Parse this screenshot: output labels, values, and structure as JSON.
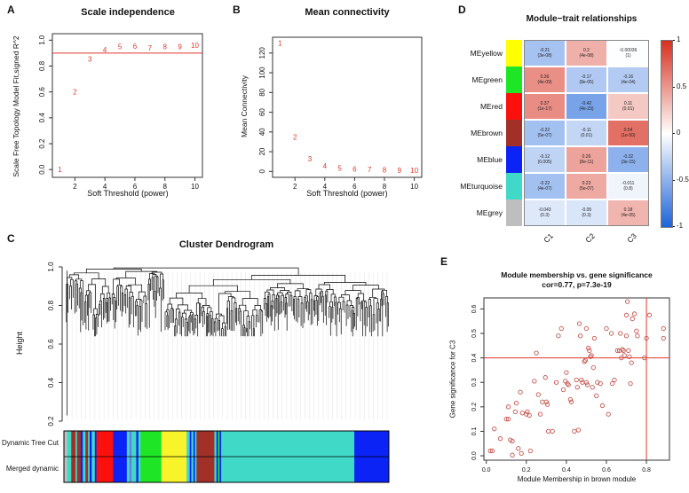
{
  "colors": {
    "accent_red": "#e0372c",
    "scatter_stroke": "#c4564e",
    "heat_positive": "#d7301f",
    "heat_negative": "#1c64d9",
    "axis_box": "#333333",
    "faint_grid": "#e7e7e7"
  },
  "chart_data": [
    {
      "panel_label": "A",
      "type": "scatter",
      "point_style": "text-labels",
      "title": "Scale independence",
      "xlabel": "Soft Threshold (power)",
      "ylabel": "Scale Free Topology Model Fit,signed R^2",
      "xticks": [
        "2",
        "4",
        "6",
        "8",
        "10"
      ],
      "xtick_vals": [
        2,
        4,
        6,
        8,
        10
      ],
      "yticks": [
        "0.0",
        "0.2",
        "0.4",
        "0.6",
        "0.8",
        "1.0"
      ],
      "ytick_vals": [
        0.0,
        0.2,
        0.4,
        0.6,
        0.8,
        1.0
      ],
      "xlim": [
        0.5,
        10.5
      ],
      "ylim": [
        -0.06,
        1.05
      ],
      "hline": 0.9,
      "labels": [
        "1",
        "2",
        "3",
        "4",
        "5",
        "6",
        "7",
        "8",
        "9",
        "10"
      ],
      "x": [
        1,
        2,
        3,
        4,
        5,
        6,
        7,
        8,
        9,
        10
      ],
      "y": [
        0.0,
        0.6,
        0.855,
        0.925,
        0.95,
        0.955,
        0.94,
        0.95,
        0.95,
        0.96
      ]
    },
    {
      "panel_label": "B",
      "type": "scatter",
      "point_style": "text-labels",
      "title": "Mean connectivity",
      "xlabel": "Soft Threshold (power)",
      "ylabel": "Mean Connectivity",
      "xticks": [
        "2",
        "4",
        "6",
        "8",
        "10"
      ],
      "xtick_vals": [
        2,
        4,
        6,
        8,
        10
      ],
      "yticks": [
        "0",
        "20",
        "40",
        "60",
        "80",
        "100",
        "120"
      ],
      "ytick_vals": [
        0,
        20,
        40,
        60,
        80,
        100,
        120
      ],
      "xlim": [
        0.5,
        10.5
      ],
      "ylim": [
        -6,
        136
      ],
      "labels": [
        "1",
        "2",
        "3",
        "4",
        "5",
        "6",
        "7",
        "8",
        "9",
        "10"
      ],
      "x": [
        1,
        2,
        3,
        4,
        5,
        6,
        7,
        8,
        9,
        10
      ],
      "y": [
        130,
        35,
        13,
        5.5,
        3.5,
        2.5,
        2,
        1.5,
        1.2,
        1
      ]
    },
    {
      "panel_label": "C",
      "type": "dendrogram",
      "title": "Cluster Dendrogram",
      "ylabel": "Height",
      "yticks": [
        "0.2",
        "0.4",
        "0.6",
        "0.8",
        "1.0"
      ],
      "ytick_vals": [
        0.2,
        0.4,
        0.6,
        0.8,
        1.0
      ],
      "ylim": [
        0.2,
        1.0
      ],
      "leaf_count": 165,
      "merge_height_range": [
        0.65,
        0.995
      ],
      "deep_leaf_height": 0.23,
      "bars": {
        "labels": [
          "Dynamic Tree Cut",
          "Merged dynamic"
        ],
        "stripes": [
          [
            "#BEBEBE",
            3
          ],
          [
            "#40D9C8",
            4
          ],
          [
            "#A03028",
            4
          ],
          [
            "#40D9C8",
            1.5
          ],
          [
            "#A03028",
            3.5
          ],
          [
            "#0B24F5",
            2
          ],
          [
            "#40D9C8",
            2.5
          ],
          [
            "#A03028",
            2.5
          ],
          [
            "#40D9C8",
            1.5
          ],
          [
            "#0B24F5",
            2
          ],
          [
            "#40D9C8",
            3
          ],
          [
            "#0B24F5",
            1.5
          ],
          [
            "#FB100C",
            16
          ],
          [
            "#0B24F5",
            13
          ],
          [
            "#40D9C8",
            2.5
          ],
          [
            "#6B7DD9",
            2
          ],
          [
            "#40D9C8",
            4.5
          ],
          [
            "#0B24F5",
            2
          ],
          [
            "#40D9C8",
            2
          ],
          [
            "#1EE627",
            20
          ],
          [
            "#F8F32B",
            24
          ],
          [
            "#40D9C8",
            3
          ],
          [
            "#0B24F5",
            1.5
          ],
          [
            "#40D9C8",
            2
          ],
          [
            "#0B24F5",
            1.5
          ],
          [
            "#40D9C8",
            1.5
          ],
          [
            "#A03028",
            17
          ],
          [
            "#40D9C8",
            2
          ],
          [
            "#0B24F5",
            1.5
          ],
          [
            "#1EE627",
            1.5
          ],
          [
            "#0B24F5",
            1.5
          ],
          [
            "#40D9C8",
            127
          ],
          [
            "#0B24F5",
            33
          ]
        ]
      }
    },
    {
      "panel_label": "D",
      "type": "heatmap",
      "title": "Module−trait relationships",
      "columns": [
        "C1",
        "C2",
        "C3"
      ],
      "colorbar_ticks": [
        "1",
        "0.5",
        "0",
        "-0.5",
        "-1"
      ],
      "colorbar_range": [
        1,
        -1
      ],
      "rows": [
        {
          "name": "MEyellow",
          "color": "#FFFF00",
          "values": [
            -0.21,
            0.2,
            -0.00036
          ],
          "labels": [
            "-0.21",
            "0.2",
            "-0.00036"
          ],
          "p": [
            "(3e-08)",
            "(4e-08)",
            "(1)"
          ]
        },
        {
          "name": "MEgreen",
          "color": "#1EE627",
          "values": [
            0.36,
            -0.17,
            -0.16
          ],
          "labels": [
            "0.36",
            "-0.17",
            "-0.16"
          ],
          "p": [
            "(4e-09)",
            "(8e-05)",
            "(4e-04)"
          ]
        },
        {
          "name": "MEred",
          "color": "#FB100C",
          "values": [
            0.37,
            -0.42,
            0.11
          ],
          "labels": [
            "0.37",
            "-0.42",
            "0.11"
          ],
          "p": [
            "(1e-17)",
            "(4e-23)",
            "(0.01)"
          ]
        },
        {
          "name": "MEbrown",
          "color": "#A03028",
          "values": [
            -0.22,
            -0.11,
            0.54
          ],
          "labels": [
            "-0.22",
            "-0.11",
            "0.54"
          ],
          "p": [
            "(5e-07)",
            "(0.01)",
            "(1e-50)"
          ]
        },
        {
          "name": "MEblue",
          "color": "#0B24F5",
          "values": [
            -0.12,
            0.26,
            -0.32
          ],
          "labels": [
            "-0.12",
            "0.26",
            "-0.32"
          ],
          "p": [
            "(0.005)",
            "(8e-11)",
            "(3e-15)"
          ]
        },
        {
          "name": "MEturquoise",
          "color": "#40D9C8",
          "values": [
            -0.22,
            0.23,
            -0.011
          ],
          "labels": [
            "-0.22",
            "0.23",
            "-0.011"
          ],
          "p": [
            "(4e-07)",
            "(5e-07)",
            "(0.8)"
          ]
        },
        {
          "name": "MEgrey",
          "color": "#BEBEBE",
          "values": [
            -0.043,
            -0.05,
            0.18
          ],
          "labels": [
            "-0.043",
            "-0.05",
            "0.18"
          ],
          "p": [
            "(0.3)",
            "(0.3)",
            "(4e-05)"
          ]
        }
      ]
    },
    {
      "panel_label": "E",
      "type": "scatter",
      "point_style": "open-circles",
      "title": "Module membership vs. gene significance",
      "subtitle": "cor=0.77, p=7.3e-19",
      "xlabel": "Module Membership in brown module",
      "ylabel": "Gene significance for C3",
      "xticks": [
        "0.0",
        "0.2",
        "0.4",
        "0.6",
        "0.8"
      ],
      "xtick_vals": [
        0.0,
        0.2,
        0.4,
        0.6,
        0.8
      ],
      "yticks": [
        "0.0",
        "0.1",
        "0.2",
        "0.3",
        "0.4",
        "0.5",
        "0.6"
      ],
      "ytick_vals": [
        0.0,
        0.1,
        0.2,
        0.3,
        0.4,
        0.5,
        0.6
      ],
      "xlim": [
        -0.012,
        0.915
      ],
      "ylim": [
        -0.018,
        0.645
      ],
      "hline": 0.4,
      "vline": 0.8,
      "points": [
        [
          0.02,
          0.02
        ],
        [
          0.03,
          0.02
        ],
        [
          0.04,
          0.11
        ],
        [
          0.07,
          0.07
        ],
        [
          0.1,
          0.15
        ],
        [
          0.11,
          0.15
        ],
        [
          0.11,
          0.2
        ],
        [
          0.12,
          0.065
        ],
        [
          0.13,
          0.06
        ],
        [
          0.13,
          0.003
        ],
        [
          0.145,
          0.18
        ],
        [
          0.15,
          0.215
        ],
        [
          0.16,
          0.03
        ],
        [
          0.17,
          0.26
        ],
        [
          0.175,
          0.01
        ],
        [
          0.18,
          0.175
        ],
        [
          0.2,
          0.17
        ],
        [
          0.205,
          0.18
        ],
        [
          0.215,
          0.165
        ],
        [
          0.22,
          0.02
        ],
        [
          0.24,
          0.305
        ],
        [
          0.25,
          0.42
        ],
        [
          0.26,
          0.25
        ],
        [
          0.27,
          0.17
        ],
        [
          0.28,
          0.22
        ],
        [
          0.295,
          0.32
        ],
        [
          0.3,
          0.22
        ],
        [
          0.305,
          0.21
        ],
        [
          0.31,
          0.1
        ],
        [
          0.33,
          0.1
        ],
        [
          0.35,
          0.3
        ],
        [
          0.36,
          0.49
        ],
        [
          0.375,
          0.52
        ],
        [
          0.385,
          0.27
        ],
        [
          0.395,
          0.305
        ],
        [
          0.4,
          0.34
        ],
        [
          0.405,
          0.295
        ],
        [
          0.41,
          0.29
        ],
        [
          0.42,
          0.23
        ],
        [
          0.425,
          0.22
        ],
        [
          0.44,
          0.1
        ],
        [
          0.45,
          0.31
        ],
        [
          0.455,
          0.28
        ],
        [
          0.46,
          0.105
        ],
        [
          0.465,
          0.54
        ],
        [
          0.47,
          0.49
        ],
        [
          0.475,
          0.31
        ],
        [
          0.48,
          0.3
        ],
        [
          0.49,
          0.385
        ],
        [
          0.495,
          0.39
        ],
        [
          0.5,
          0.52
        ],
        [
          0.5,
          0.3
        ],
        [
          0.505,
          0.29
        ],
        [
          0.51,
          0.44
        ],
        [
          0.515,
          0.43
        ],
        [
          0.52,
          0.405
        ],
        [
          0.525,
          0.41
        ],
        [
          0.53,
          0.28
        ],
        [
          0.535,
          0.36
        ],
        [
          0.54,
          0.48
        ],
        [
          0.55,
          0.245
        ],
        [
          0.555,
          0.3
        ],
        [
          0.57,
          0.295
        ],
        [
          0.58,
          0.205
        ],
        [
          0.6,
          0.52
        ],
        [
          0.61,
          0.17
        ],
        [
          0.625,
          0.5
        ],
        [
          0.63,
          0.295
        ],
        [
          0.64,
          0.31
        ],
        [
          0.655,
          0.43
        ],
        [
          0.665,
          0.43
        ],
        [
          0.67,
          0.5
        ],
        [
          0.675,
          0.4
        ],
        [
          0.68,
          0.435
        ],
        [
          0.685,
          0.43
        ],
        [
          0.69,
          0.41
        ],
        [
          0.7,
          0.575
        ],
        [
          0.7,
          0.49
        ],
        [
          0.705,
          0.63
        ],
        [
          0.71,
          0.43
        ],
        [
          0.715,
          0.405
        ],
        [
          0.72,
          0.295
        ],
        [
          0.725,
          0.38
        ],
        [
          0.73,
          0.56
        ],
        [
          0.74,
          0.58
        ],
        [
          0.75,
          0.51
        ],
        [
          0.755,
          0.49
        ],
        [
          0.79,
          0.4
        ],
        [
          0.8,
          0.48
        ],
        [
          0.815,
          0.575
        ],
        [
          0.885,
          0.52
        ],
        [
          0.885,
          0.48
        ]
      ]
    }
  ]
}
